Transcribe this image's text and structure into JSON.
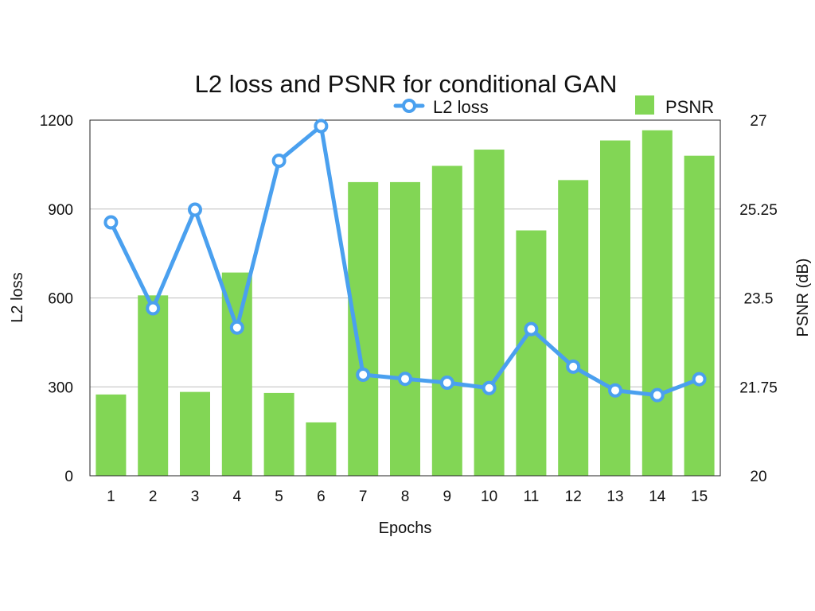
{
  "chart_data": {
    "type": "bar",
    "title": "L2 loss and PSNR for conditional GAN",
    "xlabel": "Epochs",
    "ylabel": "L2 loss",
    "y2label": "PSNR (dB)",
    "categories": [
      "1",
      "2",
      "3",
      "4",
      "5",
      "6",
      "7",
      "8",
      "9",
      "10",
      "11",
      "12",
      "13",
      "14",
      "15"
    ],
    "ylim": [
      0,
      1200
    ],
    "y2lim": [
      20,
      27
    ],
    "yticks": [
      "0",
      "300",
      "600",
      "900",
      "1200"
    ],
    "y2ticks": [
      "20",
      "21.75",
      "23.5",
      "25.25",
      "27"
    ],
    "grid": true,
    "legend_position": "top",
    "series": [
      {
        "name": "PSNR",
        "type": "bar",
        "axis": "right",
        "color": "#82d655",
        "values": [
          21.6,
          23.55,
          21.65,
          24.0,
          21.63,
          21.05,
          25.78,
          25.78,
          26.1,
          26.42,
          24.83,
          25.82,
          26.6,
          26.8,
          26.3
        ]
      },
      {
        "name": "L2 loss",
        "type": "line",
        "axis": "left",
        "color": "#4aa0ef",
        "values": [
          855,
          565,
          898,
          500,
          1063,
          1180,
          341,
          327,
          314,
          296,
          495,
          368,
          288,
          272,
          326
        ]
      }
    ]
  }
}
